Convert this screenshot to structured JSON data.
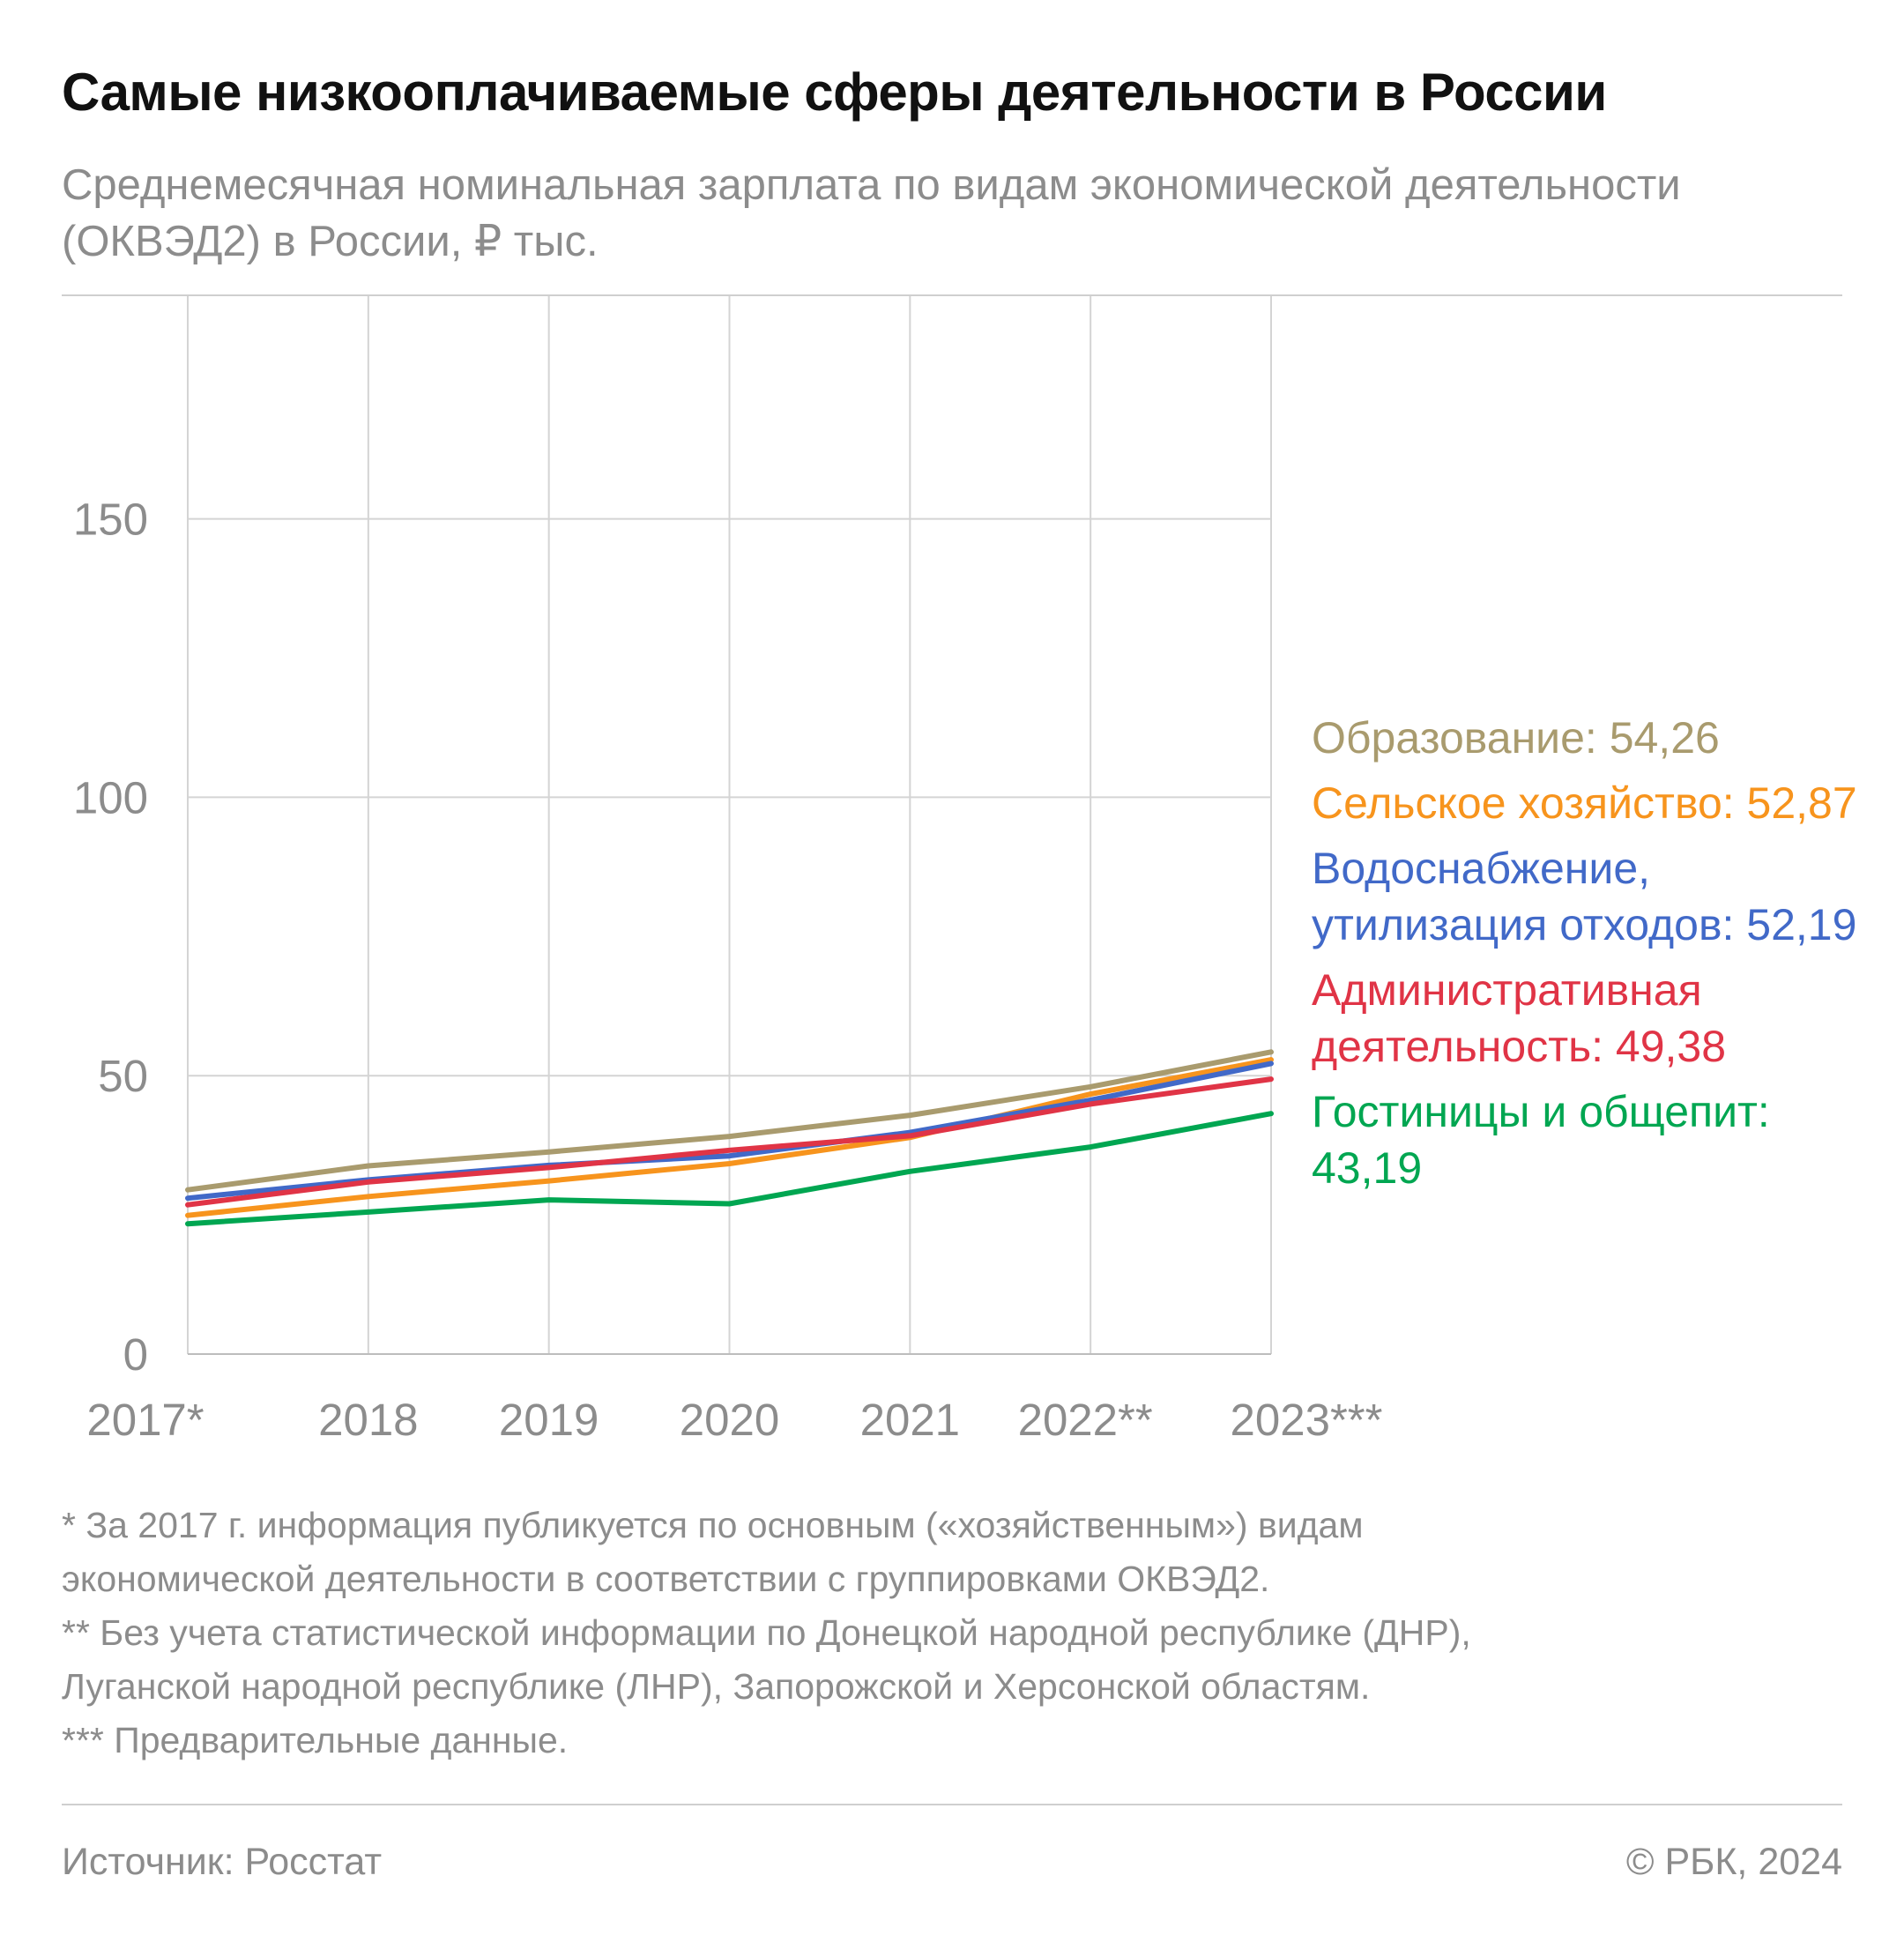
{
  "header": {
    "title": "Самые низкооплачиваемые сферы деятельности в России",
    "subtitle": "Среднемесячная номинальная зарплата по видам экономической деятельности (ОКВЭД2) в России, ₽ тыс."
  },
  "chart_data": {
    "type": "line",
    "title": "Самые низкооплачиваемые сферы деятельности в России",
    "subtitle": "Среднемесячная номинальная зарплата по видам экономической деятельности (ОКВЭД2) в России, ₽ тыс.",
    "xlabel": "",
    "ylabel": "",
    "categories": [
      "2017*",
      "2018",
      "2019",
      "2020",
      "2021",
      "2022**",
      "2023***"
    ],
    "ylim": [
      0,
      190
    ],
    "yticks": [
      0,
      50,
      100,
      150
    ],
    "grid": true,
    "legend_position": "right",
    "series": [
      {
        "name": "Образование",
        "value_label": "54,26",
        "color": "#a99b6e",
        "values": [
          29.5,
          33.8,
          36.3,
          39.1,
          42.9,
          48.0,
          54.26
        ]
      },
      {
        "name": "Сельское хозяйство",
        "value_label": "52,87",
        "color": "#f7941d",
        "values": [
          24.9,
          28.3,
          31.1,
          34.2,
          38.9,
          46.7,
          52.87
        ]
      },
      {
        "name": "Водоснабжение, утилизация отходов",
        "value_label": "52,19",
        "color": "#4169c8",
        "values": [
          28.0,
          31.3,
          33.9,
          35.6,
          39.8,
          45.6,
          52.19
        ]
      },
      {
        "name": "Административная деятельность",
        "value_label": "49,38",
        "color": "#e03446",
        "values": [
          26.8,
          30.9,
          33.5,
          36.6,
          39.2,
          44.9,
          49.38
        ]
      },
      {
        "name": "Гостиницы и общепит",
        "value_label": "43,19",
        "color": "#00a651",
        "values": [
          23.4,
          25.5,
          27.7,
          27.0,
          32.8,
          37.2,
          43.19
        ]
      }
    ]
  },
  "legend": [
    {
      "text": "Образование: 54,26",
      "color": "#a99b6e"
    },
    {
      "text": "Сельское хозяйство: 52,87",
      "color": "#f7941d"
    },
    {
      "text": "Водоснабжение, утилизация отходов: 52,19",
      "color": "#4169c8"
    },
    {
      "text": "Административная деятельность: 49,38",
      "color": "#e03446"
    },
    {
      "text": "Гостиницы и общепит: 43,19",
      "color": "#00a651"
    }
  ],
  "notes": [
    "* За 2017 г. информация публикуется по основным («хозяйственным») видам",
    "экономической деятельности в соответствии с группировками ОКВЭД2.",
    "** Без учета статистической информации по Донецкой народной республике (ДНР),",
    "Луганской народной республике (ЛНР), Запорожской и Херсонской областям.",
    "*** Предварительные данные."
  ],
  "footer": {
    "source": "Источник: Росстат",
    "copyright": "© РБК, 2024"
  }
}
